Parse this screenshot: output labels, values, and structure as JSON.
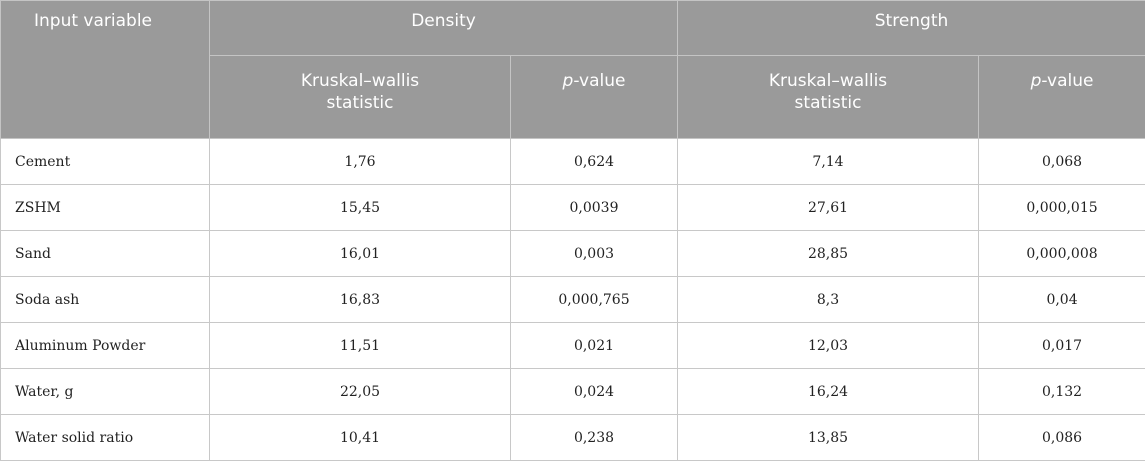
{
  "header": {
    "input_variable": "Input variable",
    "density": "Density",
    "strength": "Strength",
    "kw_line1": "Kruskal–wallis",
    "kw_line2": "statistic",
    "p_italic": "p",
    "p_rest": "-value"
  },
  "rows": [
    {
      "name": "Cement",
      "d_kw": "1,76",
      "d_p": "0,624",
      "s_kw": "7,14",
      "s_p": "0,068"
    },
    {
      "name": "ZSHM",
      "d_kw": "15,45",
      "d_p": "0,0039",
      "s_kw": "27,61",
      "s_p": "0,000,015"
    },
    {
      "name": "Sand",
      "d_kw": "16,01",
      "d_p": "0,003",
      "s_kw": "28,85",
      "s_p": "0,000,008"
    },
    {
      "name": "Soda ash",
      "d_kw": "16,83",
      "d_p": "0,000,765",
      "s_kw": "8,3",
      "s_p": "0,04"
    },
    {
      "name": "Aluminum Powder",
      "d_kw": "11,51",
      "d_p": "0,021",
      "s_kw": "12,03",
      "s_p": "0,017"
    },
    {
      "name": "Water, g",
      "d_kw": "22,05",
      "d_p": "0,024",
      "s_kw": "16,24",
      "s_p": "0,132"
    },
    {
      "name": "Water solid ratio",
      "d_kw": "10,41",
      "d_p": "0,238",
      "s_kw": "13,85",
      "s_p": "0,086"
    }
  ]
}
